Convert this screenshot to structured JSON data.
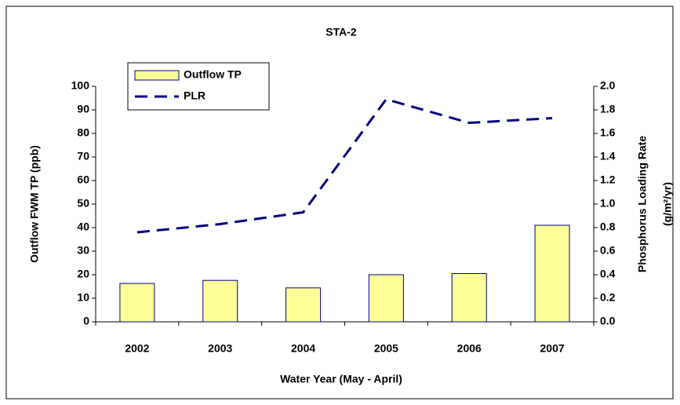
{
  "chart_data": {
    "type": "bar",
    "title": "STA-2",
    "x_label": "Water Year (May - April)",
    "y_label": "Outflow FWM TP (ppb)",
    "y2_label": [
      "Phosphorus Loading Rate",
      "(g/m²/yr)"
    ],
    "categories": [
      "2002",
      "2003",
      "2004",
      "2005",
      "2006",
      "2007"
    ],
    "series": [
      {
        "name": "Outflow TP",
        "type": "bar",
        "color": "#ffff99",
        "values": [
          16.3,
          17.6,
          14.4,
          20,
          20.5,
          41
        ]
      },
      {
        "name": "PLR",
        "type": "line",
        "axis": "y2",
        "color": "#000080",
        "values": [
          0.76,
          0.83,
          0.93,
          1.89,
          1.69,
          1.73
        ]
      }
    ],
    "ylim": [
      0,
      100
    ],
    "yticks": [
      0,
      10,
      20,
      30,
      40,
      50,
      60,
      70,
      80,
      90,
      100
    ],
    "y2lim": [
      0,
      2
    ],
    "y2ticks": [
      {
        "value": 0,
        "label": "0.0"
      },
      0.2,
      0.4,
      0.6,
      0.8,
      {
        "value": 1,
        "label": "1.0"
      },
      1.2,
      1.4,
      1.6,
      1.8,
      {
        "value": 2,
        "label": "2.0"
      }
    ],
    "legend": "upper left"
  }
}
